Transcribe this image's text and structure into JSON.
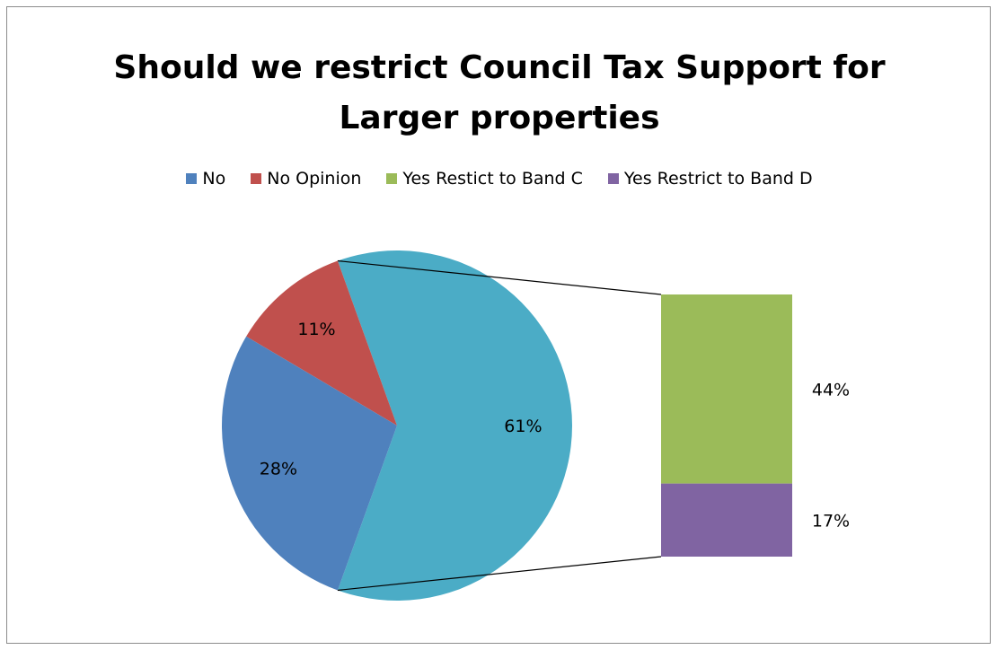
{
  "chart_data": {
    "type": "pie",
    "subtype": "bar-of-pie",
    "title_lines": [
      "Should we restrict Council Tax Support for",
      "Larger properties"
    ],
    "legend": [
      {
        "label": "No",
        "color": "#4f81bd"
      },
      {
        "label": "No Opinion",
        "color": "#c0504d"
      },
      {
        "label": "Yes Restict to Band C",
        "color": "#9bbb59"
      },
      {
        "label": "Yes Restrict to Band D",
        "color": "#8064a2"
      }
    ],
    "pie_slices": [
      {
        "label": "No",
        "value": 28,
        "display": "28%",
        "color": "#4f81bd"
      },
      {
        "label": "No Opinion",
        "value": 11,
        "display": "11%",
        "color": "#c0504d"
      },
      {
        "label": "Other",
        "value": 61,
        "display": "61%",
        "color": "#4bacc6"
      }
    ],
    "bar_segments": [
      {
        "label": "Yes Restict to Band C",
        "value": 44,
        "display": "44%",
        "color": "#9bbb59"
      },
      {
        "label": "Yes Restrict to Band D",
        "value": 17,
        "display": "17%",
        "color": "#8064a2"
      }
    ],
    "legend_position": "top"
  }
}
